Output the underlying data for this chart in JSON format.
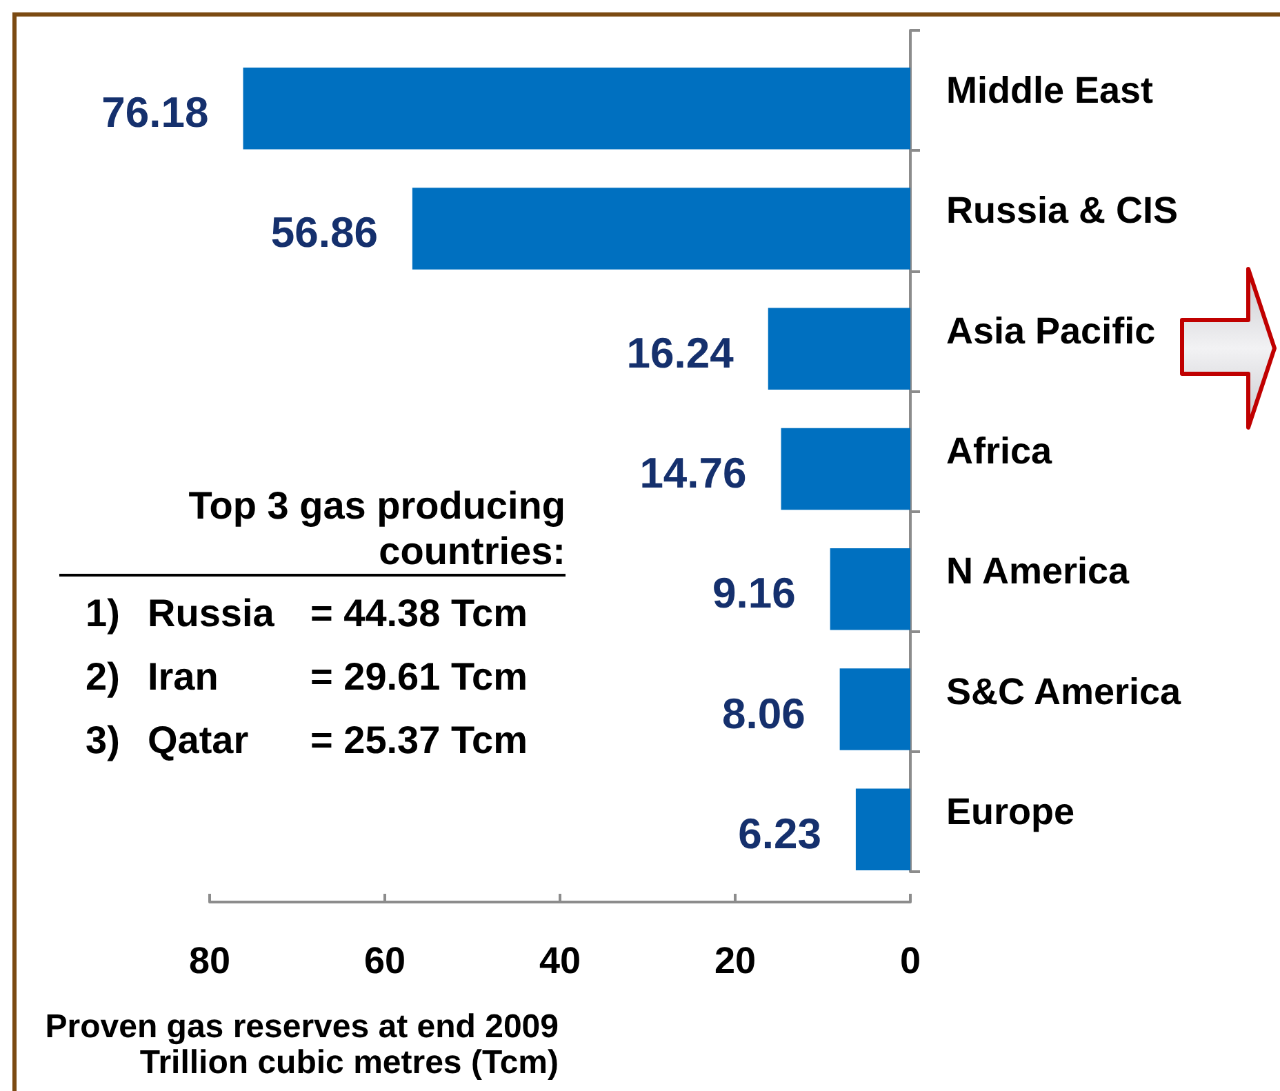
{
  "chart_data": {
    "type": "bar",
    "orientation": "horizontal",
    "categories": [
      "Middle East",
      "Russia & CIS",
      "Asia Pacific",
      "Africa",
      "N America",
      "S&C America",
      "Europe"
    ],
    "values": [
      76.18,
      56.86,
      16.24,
      14.76,
      9.16,
      8.06,
      6.23
    ],
    "color": "#0070c0",
    "xlim": [
      80,
      0
    ],
    "xticks": [
      80,
      60,
      40,
      20,
      0
    ],
    "xlabel": "Proven gas reserves at end 2009\nTrillion cubic metres (Tcm)",
    "data_labels": true,
    "annotations": [
      "Top 3 gas producing countries:",
      "1) Russia = 44.38 Tcm",
      "2) Iran = 29.61 Tcm",
      "3) Qatar = 25.37 Tcm"
    ]
  }
}
